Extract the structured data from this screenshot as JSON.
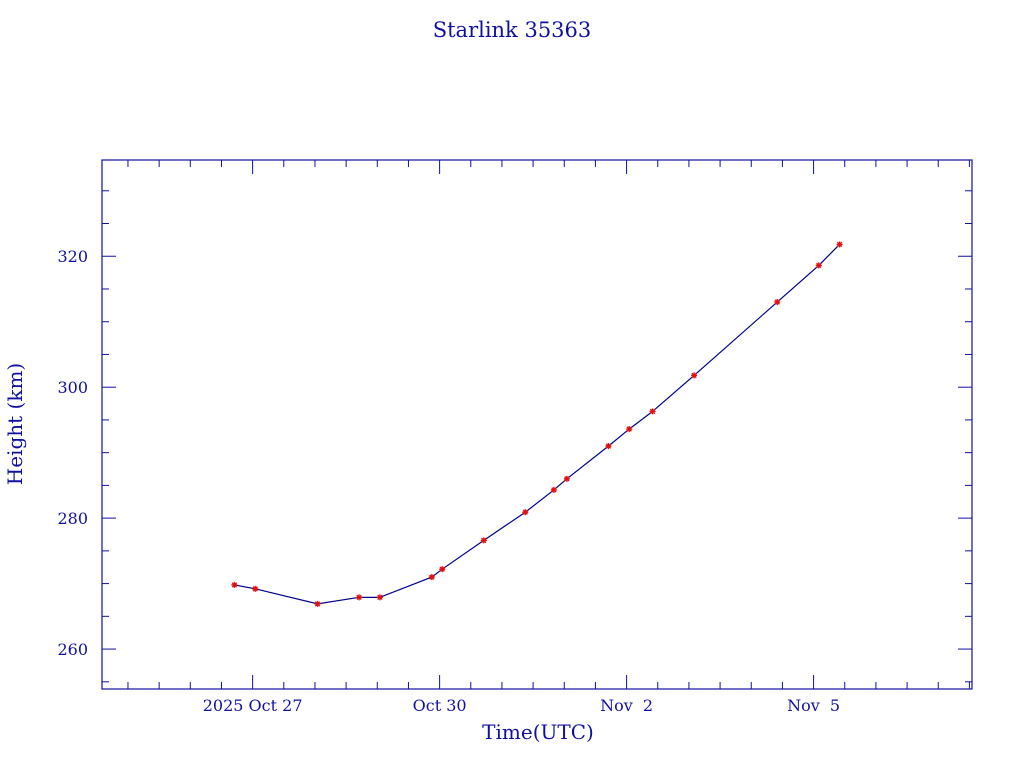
{
  "chart_data": {
    "type": "line",
    "title": "Starlink 35363",
    "xlabel": "Time(UTC)",
    "ylabel": "Height (km)",
    "xlim": [
      "2025-10-24T14:00",
      "2025-11-07T13:00"
    ],
    "ylim": [
      253.9,
      334.7
    ],
    "x_ticks": [
      {
        "value": "2025-10-27T00:00",
        "label": "2025 Oct 27"
      },
      {
        "value": "2025-10-30T00:00",
        "label": "Oct 30"
      },
      {
        "value": "2025-11-02T00:00",
        "label": "Nov  2"
      },
      {
        "value": "2025-11-05T00:00",
        "label": "Nov  5"
      }
    ],
    "y_ticks": [
      260,
      280,
      300,
      320
    ],
    "grid": false,
    "series": [
      {
        "x": [
          "2025-10-26T17:00",
          "2025-10-27T01:00",
          "2025-10-28T01:00",
          "2025-10-28T17:00",
          "2025-10-29T01:00",
          "2025-10-29T21:00",
          "2025-10-30T01:00",
          "2025-10-30T17:00",
          "2025-10-31T09:00",
          "2025-10-31T20:00",
          "2025-11-01T01:00",
          "2025-11-01T17:00",
          "2025-11-02T01:00",
          "2025-11-02T10:00",
          "2025-11-03T02:00",
          "2025-11-04T10:00",
          "2025-11-05T02:00",
          "2025-11-05T10:00"
        ],
        "y": [
          269.8,
          269.2,
          266.9,
          267.9,
          267.9,
          271.0,
          272.2,
          276.6,
          280.9,
          284.3,
          286.0,
          291.0,
          293.6,
          296.3,
          301.8,
          313.0,
          318.6,
          321.8
        ]
      }
    ],
    "colors": {
      "axis": "#1010a0",
      "line": "#00008b",
      "marker": "#e01010"
    }
  }
}
